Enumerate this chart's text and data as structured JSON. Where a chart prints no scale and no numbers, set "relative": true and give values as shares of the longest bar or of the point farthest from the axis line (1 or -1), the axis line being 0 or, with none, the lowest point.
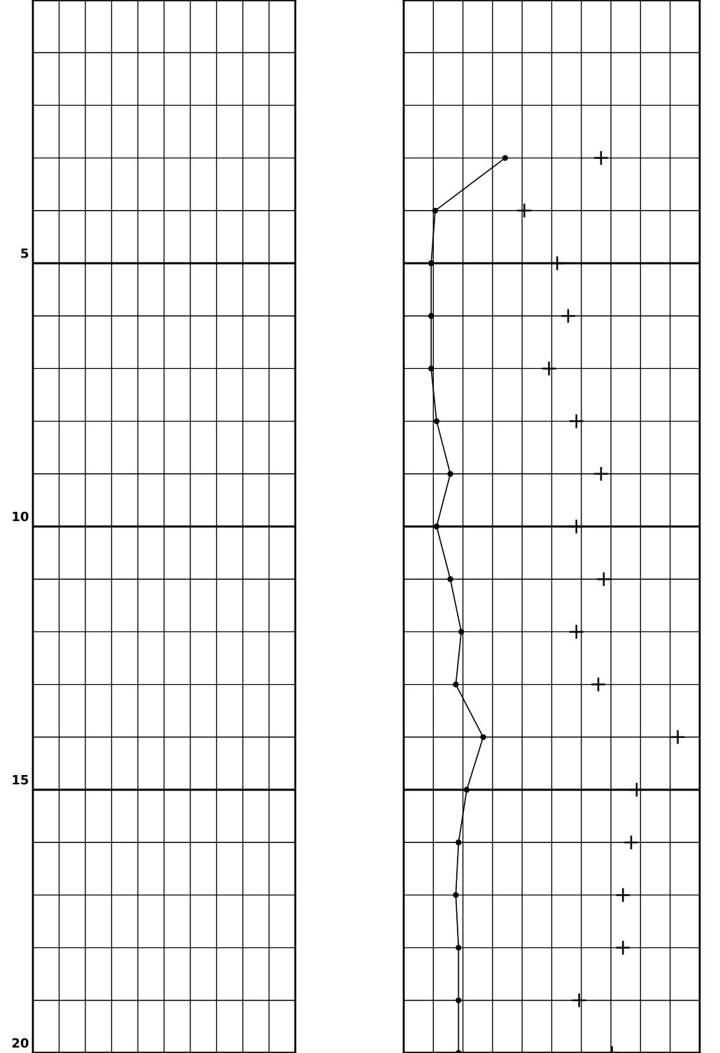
{
  "chart_data": {
    "type": "line",
    "relative": true,
    "orientation": "horizontal",
    "ylim": [
      20,
      0
    ],
    "yticks": [
      5,
      10,
      15,
      20
    ],
    "grid": true,
    "tick_labels": "y",
    "x": [
      3,
      4,
      5,
      6,
      7,
      8,
      9,
      10,
      11,
      12,
      13,
      14,
      15,
      16,
      17,
      18,
      19,
      20
    ],
    "series": [
      {
        "color": "#000000",
        "marker": "circle",
        "values": [
          0.37,
          0.115,
          0.1,
          0.1,
          0.1,
          0.12,
          0.17,
          0.12,
          0.17,
          0.21,
          0.19,
          0.29,
          0.23,
          0.2,
          0.19,
          0.2,
          0.2,
          0.2
        ]
      },
      {
        "type": "scatter",
        "color": "#000000",
        "marker": "cross",
        "values": [
          0.72,
          0.44,
          0.56,
          0.6,
          0.53,
          0.63,
          0.72,
          0.63,
          0.73,
          0.63,
          0.71,
          1.0,
          0.85,
          0.83,
          0.8,
          0.8,
          0.64,
          0.76
        ]
      }
    ]
  }
}
